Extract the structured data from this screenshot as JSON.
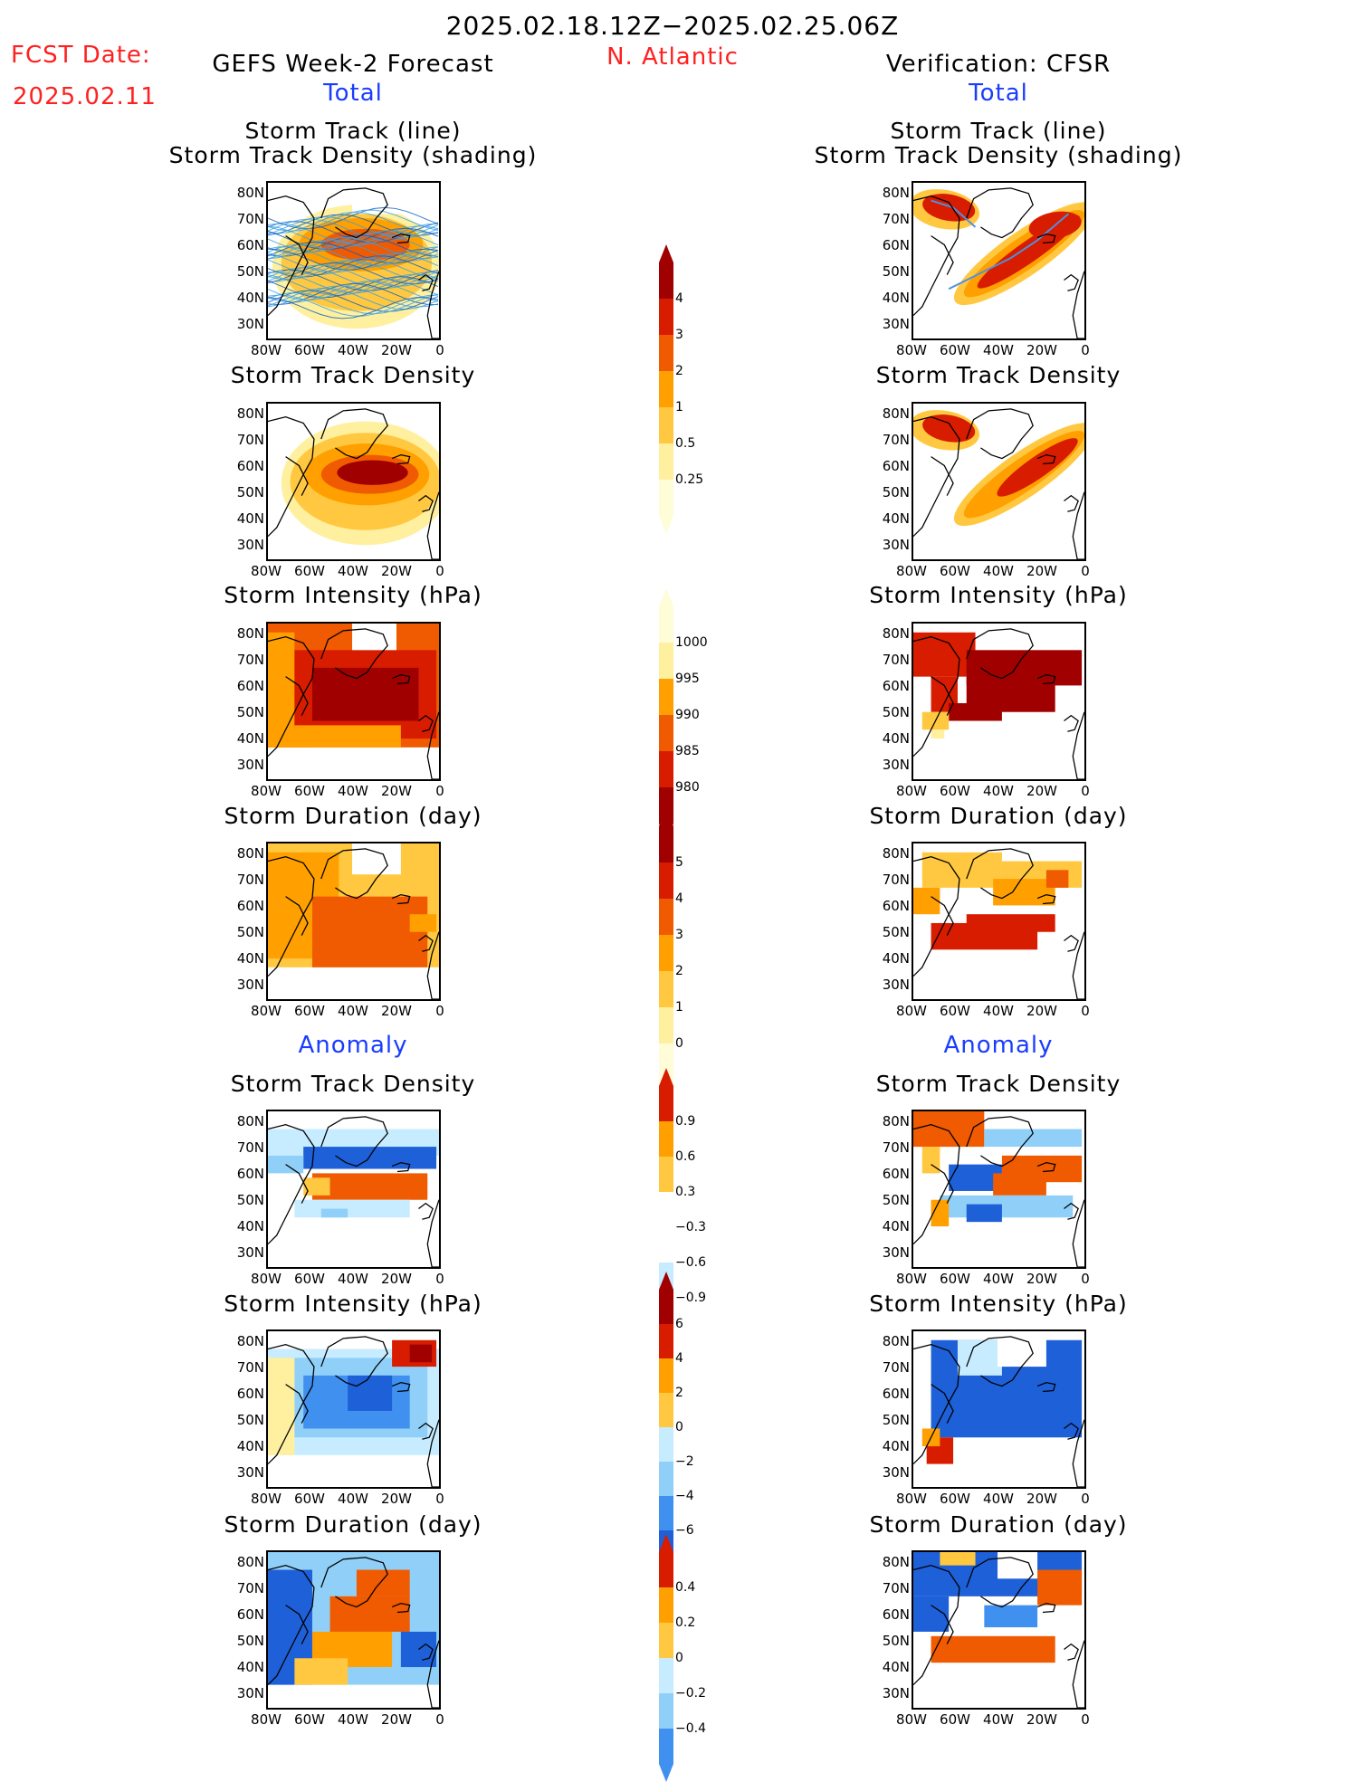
{
  "header": {
    "date_range": "2025.02.18.12Z−2025.02.25.06Z",
    "fcst_label": "FCST Date:",
    "fcst_date": "2025.02.11",
    "region": "N. Atlantic",
    "left_title": "GEFS Week-2 Forecast",
    "right_title": "Verification: CFSR",
    "left_section_total": "Total",
    "right_section_total": "Total",
    "left_section_anom": "Anomaly",
    "right_section_anom": "Anomaly"
  },
  "panel_titles": {
    "track_line": "Storm Track (line)",
    "track_shading": "Storm Track Density (shading)",
    "density": "Storm Track Density",
    "intensity": "Storm Intensity (hPa)",
    "duration": "Storm Duration (day)"
  },
  "axes": {
    "lat_ticks": [
      "80N",
      "70N",
      "60N",
      "50N",
      "40N",
      "30N"
    ],
    "lon_ticks": [
      "80W",
      "60W",
      "40W",
      "20W",
      "0"
    ]
  },
  "colorbars": {
    "density_total": [
      "4",
      "3",
      "2",
      "1",
      "0.5",
      "0.25"
    ],
    "intensity_total": [
      "1000",
      "995",
      "990",
      "985",
      "980"
    ],
    "duration_total": [
      "5",
      "4",
      "3",
      "2",
      "1",
      "0"
    ],
    "density_anom": [
      "0.9",
      "0.6",
      "0.3",
      "−0.3",
      "−0.6",
      "−0.9"
    ],
    "intensity_anom": [
      "6",
      "4",
      "2",
      "0",
      "−2",
      "−4",
      "−6"
    ],
    "duration_anom": [
      "0.4",
      "0.2",
      "0",
      "−0.2",
      "−0.4"
    ]
  },
  "colors": {
    "dark_red": "#a00000",
    "red": "#d81c00",
    "orange_red": "#f05a00",
    "orange": "#ffa000",
    "light_orange": "#ffc840",
    "pale_yellow": "#fff0a0",
    "blue_dark": "#1e60d8",
    "blue_mid": "#4090f0",
    "blue_light": "#90d0f8",
    "blue_pale": "#c8ecff"
  }
}
